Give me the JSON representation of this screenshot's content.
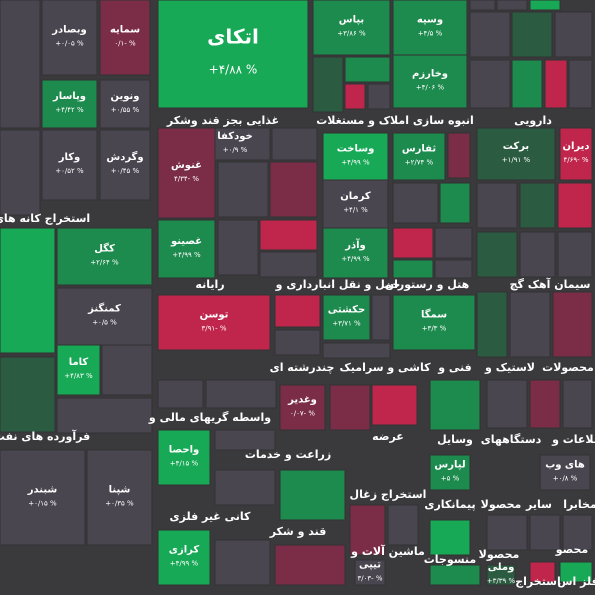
{
  "tiles": [
    {
      "name": "اتکای",
      "change": "+۴/۸۸ %"
    },
    {
      "name": "وبصادر",
      "change": "+۰/۰۵ %"
    },
    {
      "name": "سمایه",
      "change": "۰/۱- %"
    },
    {
      "name": "بپاس",
      "change": "+۳/۸۶ %"
    },
    {
      "name": "وسپه",
      "change": "+۴/۵ %"
    },
    {
      "name": "وخارزم",
      "change": "+۴/۰۶ %"
    },
    {
      "name": "وپاسار",
      "change": "+۴/۴۲ %"
    },
    {
      "name": "ونوین",
      "change": "+۰/۵۵ %"
    },
    {
      "name": "وگردش",
      "change": "+۰/۴۵ %"
    },
    {
      "name": "وکار",
      "change": "+۰/۵۲ %"
    },
    {
      "name": "خودکفا",
      "change": "+۰/۹ %"
    },
    {
      "name": "غنوش",
      "change": "۴/۳۴- %"
    },
    {
      "name": "وساخت",
      "change": "+۴/۹۹ %"
    },
    {
      "name": "ثفارس",
      "change": "+۲/۷۴ %"
    },
    {
      "name": "برکت",
      "change": "+۱/۹۱ %"
    },
    {
      "name": "دیران",
      "change": "۴/۶۹- %"
    },
    {
      "name": "کرمان",
      "change": "+۴/۱ %"
    },
    {
      "name": "کگل",
      "change": "+۲/۶۴ %"
    },
    {
      "name": "غصینو",
      "change": "+۴/۹۹ %"
    },
    {
      "name": "وآذر",
      "change": "+۴/۹۹ %"
    },
    {
      "name": "کمنگنز",
      "change": "+۰/۵ %"
    },
    {
      "name": "توسن",
      "change": "۳/۹۱- %"
    },
    {
      "name": "حکشتی",
      "change": "+۳/۷۱ %"
    },
    {
      "name": "سمگا",
      "change": "+۳/۳ %"
    },
    {
      "name": "کاما",
      "change": "+۴/۸۳ %"
    },
    {
      "name": "وغدیر",
      "change": "۰/۰۷- %"
    },
    {
      "name": "واحصا",
      "change": "+۴/۱۵ %"
    },
    {
      "name": "لپارس",
      "change": "+۵ %"
    },
    {
      "name": "های وب",
      "change": "+۰/۸ %"
    },
    {
      "name": "شبندر",
      "change": "+۰/۱۵ %"
    },
    {
      "name": "شپنا",
      "change": "+۰/۳۵ %"
    },
    {
      "name": "کرازی",
      "change": "+۴/۹۹ %"
    },
    {
      "name": "تیپی",
      "change": "۳/۰۳- %"
    },
    {
      "name": "وملی",
      "change": "+۳/۳۹ %"
    }
  ],
  "sectors": [
    "غذایی بجز قند وشکر",
    "انبوه سازی املاک و مستغلات",
    "دارویی",
    "استخراج کانه های",
    "رایانه",
    "حمل و نقل انبارداری و",
    "هتل و رستوران",
    "سیمان آهک گچ",
    "چندرشته ای",
    "کاشی و سرامیک",
    "فنی و",
    "لاستیک و",
    "محصولات",
    "واسطه گریهای مالی و",
    "فرآورده های نفت",
    "عرضه",
    "وسایل",
    "دستگاههای",
    "اطلاعات و",
    "زراعت و خدمات",
    "استخراج زغال",
    "پیمانکاری",
    "محصولا",
    "سایر",
    "مخابرا",
    "کانی غیر فلزی",
    "قند و شکر",
    "ماشین آلات و",
    "منسوجات",
    "محصولا",
    "محصو",
    "استخراج",
    "فلز اس"
  ]
}
